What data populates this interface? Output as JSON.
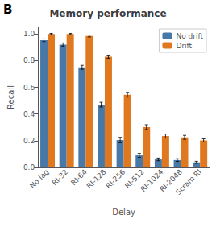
{
  "chart_data": {
    "type": "bar",
    "title": "Memory performance",
    "xlabel": "Delay",
    "ylabel": "Recall",
    "annotations": [
      {
        "text": "B"
      }
    ],
    "categories": [
      "No lag",
      "RI-32",
      "RI-64",
      "RI-128",
      "RI-256",
      "RI-512",
      "RI-1024",
      "RI-2048",
      "Scram RI"
    ],
    "series": [
      {
        "name": "No drift",
        "color": "#4878a8",
        "values": [
          0.953,
          0.921,
          0.75,
          0.47,
          0.205,
          0.09,
          0.06,
          0.055,
          0.038
        ],
        "errors": [
          0.01,
          0.012,
          0.015,
          0.018,
          0.02,
          0.015,
          0.01,
          0.01,
          0.008
        ]
      },
      {
        "name": "Drift",
        "color": "#e07820",
        "values": [
          1.0,
          1.0,
          0.985,
          0.83,
          0.545,
          0.302,
          0.235,
          0.225,
          0.202
        ],
        "errors": [
          0.005,
          0.005,
          0.007,
          0.012,
          0.018,
          0.018,
          0.015,
          0.015,
          0.012
        ]
      }
    ],
    "ylim": [
      0.0,
      1.05
    ],
    "yticks": [
      {
        "value": 0.0,
        "label": "0.0"
      },
      0.2,
      0.4,
      0.6,
      0.8,
      {
        "value": 1.0,
        "label": "1.0"
      }
    ],
    "grid": false,
    "legend": "upper right"
  }
}
